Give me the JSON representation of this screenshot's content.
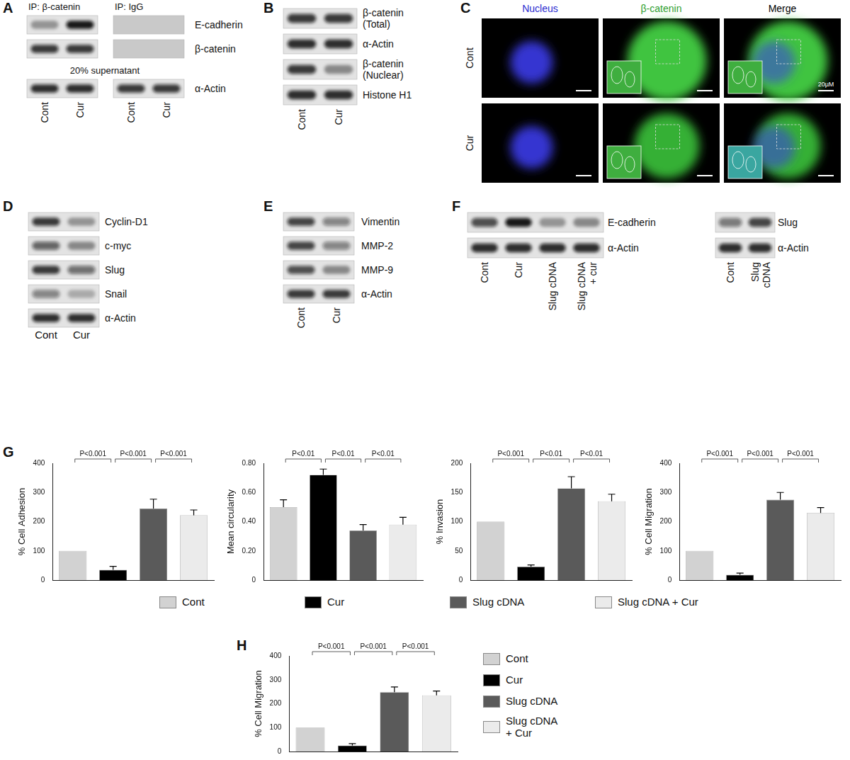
{
  "panels": {
    "A": {
      "label": "A",
      "headers": [
        "IP: β-catenin",
        "IP: IgG"
      ],
      "note": "20% supernatant",
      "lanes": [
        [
          "Cont",
          "Cur"
        ],
        [
          "Cont",
          "Cur"
        ]
      ],
      "rows": [
        {
          "name": "E-cadherin",
          "bands": [
            [
              0.35,
              0.95
            ],
            [
              0,
              0
            ]
          ]
        },
        {
          "name": "β-catenin",
          "bands": [
            [
              0.8,
              0.8
            ],
            [
              0,
              0
            ]
          ]
        },
        {
          "name": "α-Actin",
          "bands": [
            [
              0.85,
              0.85
            ],
            [
              0.8,
              0.8
            ]
          ]
        }
      ]
    },
    "B": {
      "label": "B",
      "lanes": [
        "Cont",
        "Cur"
      ],
      "rows": [
        {
          "name": "β-catenin\n(Total)",
          "bands": [
            0.8,
            0.8
          ]
        },
        {
          "name": "α-Actin",
          "bands": [
            0.85,
            0.85
          ]
        },
        {
          "name": "β-catenin\n(Nuclear)",
          "bands": [
            0.8,
            0.4
          ]
        },
        {
          "name": "Histone H1",
          "bands": [
            0.85,
            0.85
          ]
        }
      ]
    },
    "C": {
      "label": "C",
      "columns": [
        {
          "name": "Nucleus",
          "color": "#2a2ad0"
        },
        {
          "name": "β-catenin",
          "color": "#2e9e2e"
        },
        {
          "name": "Merge",
          "color": "#000000"
        }
      ],
      "rows": [
        "Cont",
        "Cur"
      ],
      "scale_bar": "20µM"
    },
    "D": {
      "label": "D",
      "lanes": [
        "Cont",
        "Cur"
      ],
      "rows": [
        {
          "name": "Cyclin-D1",
          "bands": [
            0.8,
            0.35
          ]
        },
        {
          "name": "c-myc",
          "bands": [
            0.6,
            0.4
          ]
        },
        {
          "name": "Slug",
          "bands": [
            0.8,
            0.55
          ]
        },
        {
          "name": "Snail",
          "bands": [
            0.45,
            0.25
          ]
        },
        {
          "name": "α-Actin",
          "bands": [
            0.85,
            0.85
          ]
        }
      ]
    },
    "E": {
      "label": "E",
      "lanes": [
        "Cont",
        "Cur"
      ],
      "rows": [
        {
          "name": "Vimentin",
          "bands": [
            0.75,
            0.45
          ]
        },
        {
          "name": "MMP-2",
          "bands": [
            0.75,
            0.45
          ]
        },
        {
          "name": "MMP-9",
          "bands": [
            0.7,
            0.4
          ]
        },
        {
          "name": "α-Actin",
          "bands": [
            0.8,
            0.8
          ]
        }
      ]
    },
    "F": {
      "label": "F",
      "blots": [
        {
          "lanes": [
            "Cont",
            "Cur",
            "Slug cDNA",
            "Slug cDNA\n+ cur"
          ],
          "rows": [
            {
              "name": "E-cadherin",
              "bands": [
                0.7,
                0.95,
                0.35,
                0.4
              ]
            },
            {
              "name": "α-Actin",
              "bands": [
                0.85,
                0.85,
                0.85,
                0.85
              ]
            }
          ]
        },
        {
          "lanes": [
            "Cont",
            "Slug\ncDNA"
          ],
          "rows": [
            {
              "name": "Slug",
              "bands": [
                0.5,
                0.75
              ]
            },
            {
              "name": "α-Actin",
              "bands": [
                0.85,
                0.85
              ]
            }
          ]
        }
      ]
    }
  },
  "chart_data": [
    {
      "panel": "G",
      "type": "bar",
      "ylabel": "% Cell Adhesion",
      "categories": [
        "Cont",
        "Cur",
        "Slug cDNA",
        "Slug cDNA + Cur"
      ],
      "values": [
        100,
        35,
        245,
        222
      ],
      "errors": [
        null,
        12,
        32,
        18
      ],
      "colors": [
        "#d2d2d2",
        "#000000",
        "#5a5a5a",
        "#ebebeb"
      ],
      "ylim": [
        0,
        400
      ],
      "yticks": [
        0,
        100,
        200,
        300,
        400
      ],
      "grid": false,
      "tick_labels": "y",
      "legend": "bottom",
      "annotations": [
        {
          "between": [
            "Cont",
            "Cur"
          ],
          "text": "P<0.001"
        },
        {
          "between": [
            "Cur",
            "Slug cDNA"
          ],
          "text": "P<0.001"
        },
        {
          "between": [
            "Slug cDNA",
            "Slug cDNA + Cur"
          ],
          "text": "P<0.001"
        }
      ]
    },
    {
      "panel": "G",
      "type": "bar",
      "ylabel": "Mean circularity",
      "categories": [
        "Cont",
        "Cur",
        "Slug cDNA",
        "Slug cDNA + Cur"
      ],
      "values": [
        0.5,
        0.72,
        0.34,
        0.38
      ],
      "errors": [
        0.05,
        0.04,
        0.04,
        0.05
      ],
      "colors": [
        "#d2d2d2",
        "#000000",
        "#5a5a5a",
        "#ebebeb"
      ],
      "ylim": [
        0,
        0.8
      ],
      "yticks": [
        0,
        {
          "value": 0.2,
          "label": "0.20"
        },
        {
          "value": 0.4,
          "label": "0.40"
        },
        {
          "value": 0.6,
          "label": "0.60"
        },
        {
          "value": 0.8,
          "label": "0.80"
        }
      ],
      "grid": false,
      "tick_labels": "y",
      "legend": "bottom",
      "annotations": [
        {
          "between": [
            "Cont",
            "Cur"
          ],
          "text": "P<0.01"
        },
        {
          "between": [
            "Cur",
            "Slug cDNA"
          ],
          "text": "P<0.01"
        },
        {
          "between": [
            "Slug cDNA",
            "Slug cDNA + Cur"
          ],
          "text": "P<0.01"
        }
      ]
    },
    {
      "panel": "G",
      "type": "bar",
      "ylabel": "% Invasion",
      "categories": [
        "Cont",
        "Cur",
        "Slug cDNA",
        "Slug cDNA + Cur"
      ],
      "values": [
        100,
        23,
        157,
        135
      ],
      "errors": [
        null,
        3,
        20,
        12
      ],
      "colors": [
        "#d2d2d2",
        "#000000",
        "#5a5a5a",
        "#ebebeb"
      ],
      "ylim": [
        0,
        200
      ],
      "yticks": [
        0,
        50,
        100,
        150,
        200
      ],
      "grid": false,
      "tick_labels": "y",
      "legend": "bottom",
      "annotations": [
        {
          "between": [
            "Cont",
            "Cur"
          ],
          "text": "P<0.001"
        },
        {
          "between": [
            "Cur",
            "Slug cDNA"
          ],
          "text": "P<0.01"
        },
        {
          "between": [
            "Slug cDNA",
            "Slug cDNA + Cur"
          ],
          "text": "P<0.01"
        }
      ]
    },
    {
      "panel": "G",
      "type": "bar",
      "ylabel": "% Cell Migration",
      "categories": [
        "Cont",
        "Cur",
        "Slug cDNA",
        "Slug cDNA + Cur"
      ],
      "values": [
        100,
        18,
        275,
        230
      ],
      "errors": [
        null,
        6,
        25,
        18
      ],
      "colors": [
        "#d2d2d2",
        "#000000",
        "#5a5a5a",
        "#ebebeb"
      ],
      "ylim": [
        0,
        400
      ],
      "yticks": [
        0,
        100,
        200,
        300,
        400
      ],
      "grid": false,
      "tick_labels": "y",
      "legend": "bottom",
      "annotations": [
        {
          "between": [
            "Cont",
            "Cur"
          ],
          "text": "P<0.001"
        },
        {
          "between": [
            "Cur",
            "Slug cDNA"
          ],
          "text": "P<0.001"
        },
        {
          "between": [
            "Slug cDNA",
            "Slug cDNA + Cur"
          ],
          "text": "P<0.001"
        }
      ]
    },
    {
      "panel": "H",
      "type": "bar",
      "ylabel": "% Cell Migration",
      "categories": [
        "Cont",
        "Cur",
        "Slug cDNA",
        "Slug cDNA\n+ Cur"
      ],
      "values": [
        100,
        25,
        248,
        235
      ],
      "errors": [
        null,
        8,
        22,
        18
      ],
      "colors": [
        "#d2d2d2",
        "#000000",
        "#5a5a5a",
        "#ebebeb"
      ],
      "ylim": [
        0,
        400
      ],
      "yticks": [
        0,
        100,
        200,
        300,
        400
      ],
      "grid": false,
      "tick_labels": "y",
      "legend": "right",
      "annotations": [
        {
          "between": [
            "Cont",
            "Cur"
          ],
          "text": "P<0.001"
        },
        {
          "between": [
            "Cur",
            "Slug cDNA"
          ],
          "text": "P<0.001"
        },
        {
          "between": [
            "Slug cDNA",
            "Slug cDNA\n+ Cur"
          ],
          "text": "P<0.001"
        }
      ]
    }
  ]
}
